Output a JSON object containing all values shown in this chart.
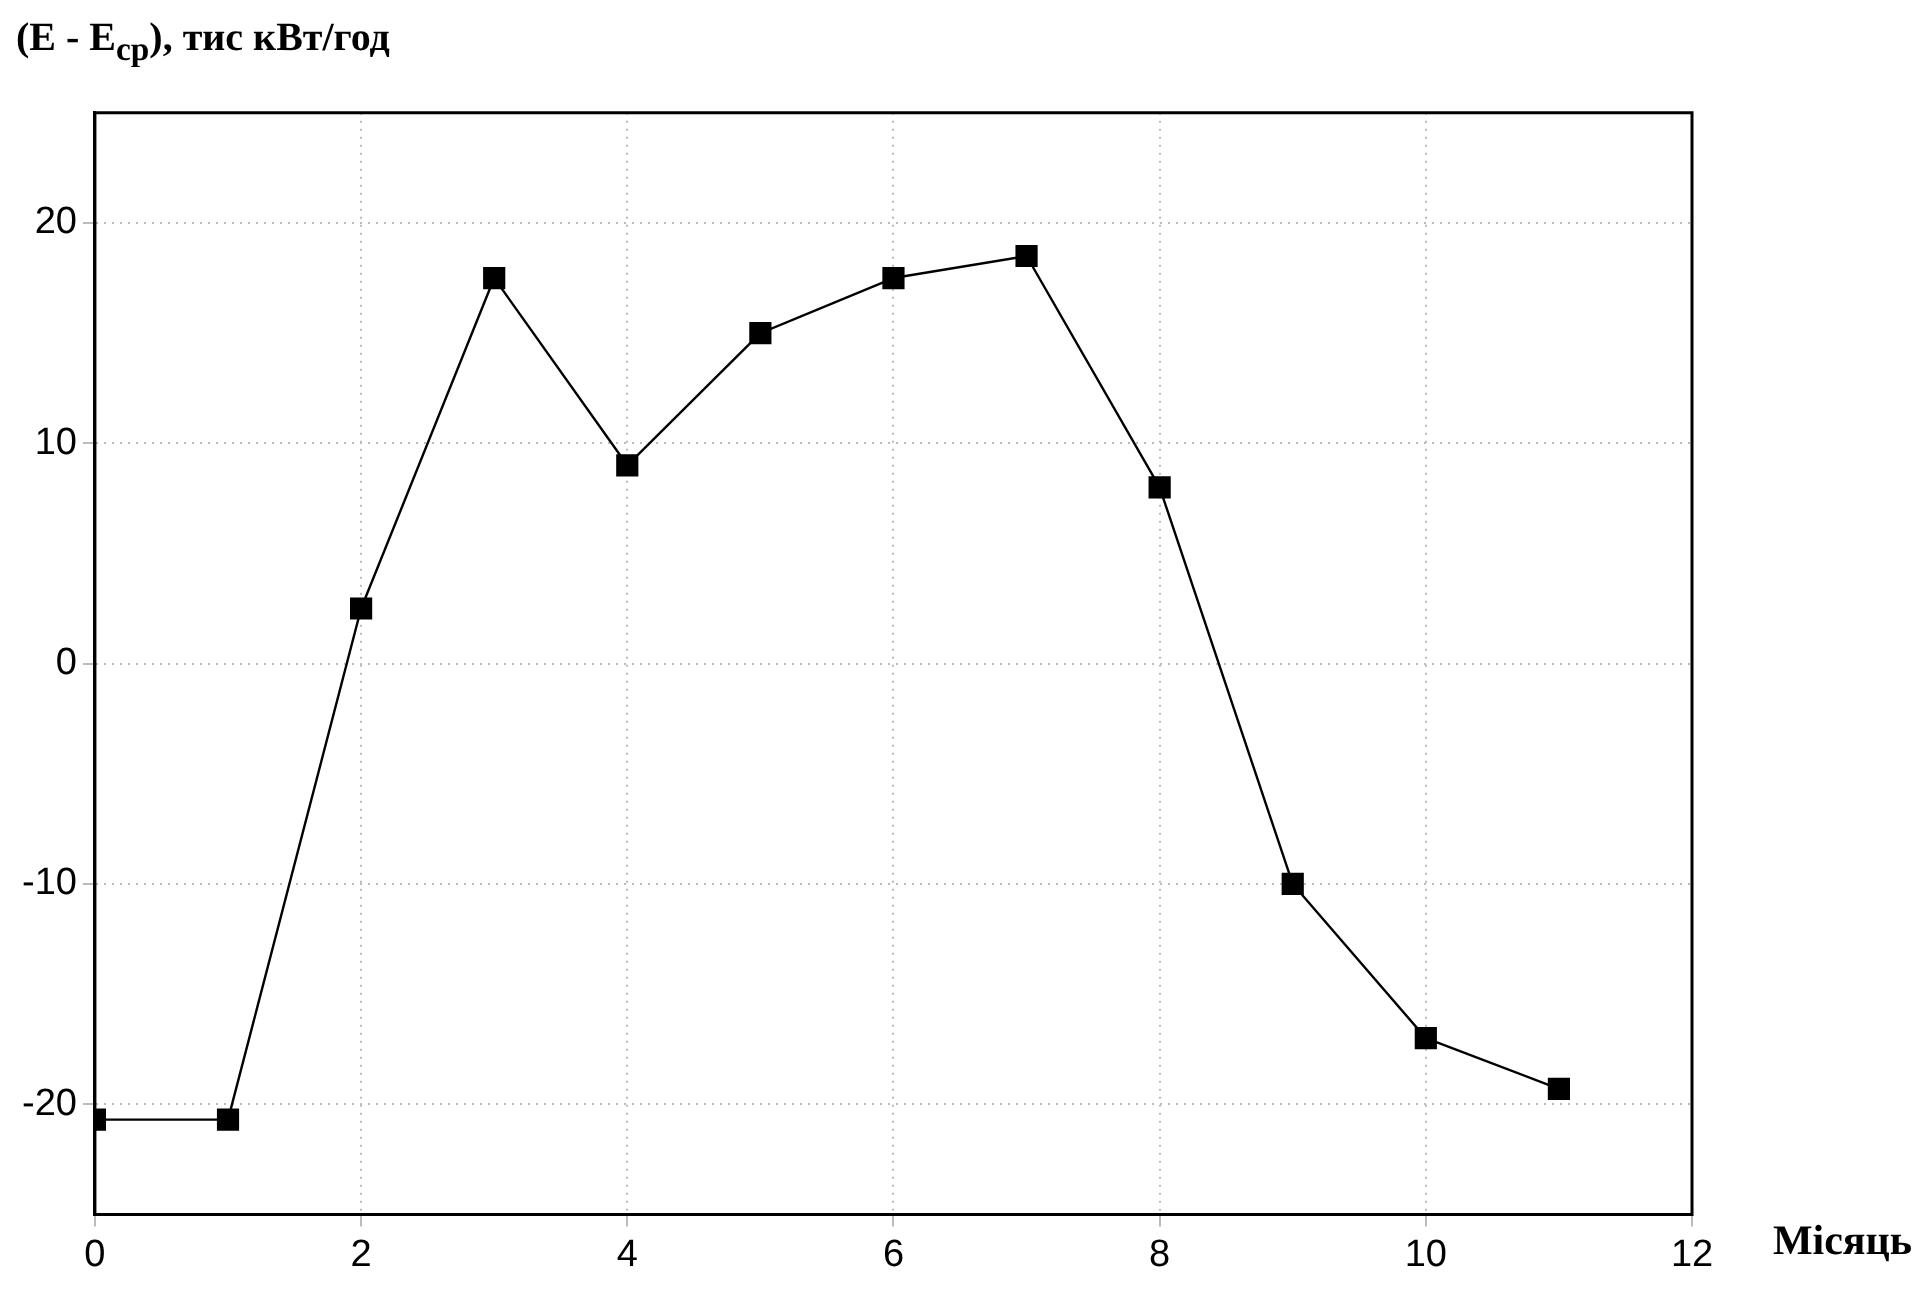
{
  "chart_data": {
    "type": "line",
    "ylabel": "(E - E$_{ср}$), тис кВт/год",
    "xlabel": "Місяць",
    "x": [
      0,
      1,
      2,
      3,
      4,
      5,
      6,
      7,
      8,
      9,
      10,
      11
    ],
    "series": [
      {
        "color": "#000000",
        "values": [
          -20.7,
          -20.7,
          2.5,
          17.5,
          9,
          15,
          17.5,
          18.5,
          8,
          -10,
          -17,
          -19.3
        ]
      }
    ],
    "xlim": [
      0,
      12
    ],
    "xticks": [
      0,
      2,
      4,
      6,
      8,
      10,
      12
    ],
    "ylim": [
      -25,
      25
    ],
    "yticks": [
      -20,
      -10,
      0,
      10,
      20
    ],
    "grid": true,
    "marker": "square",
    "line_style": "solid",
    "legend": false
  }
}
